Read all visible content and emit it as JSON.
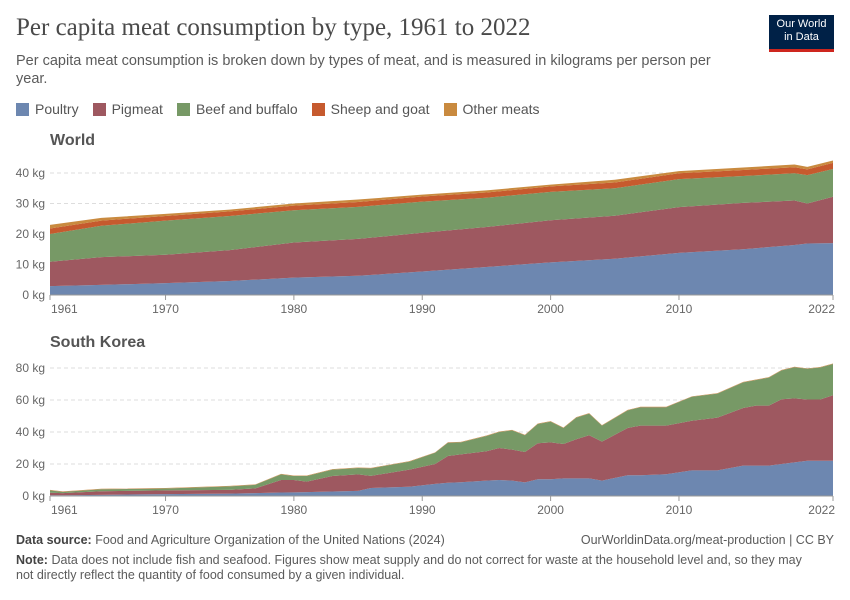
{
  "title": "Per capita meat consumption by type, 1961 to 2022",
  "subtitle": "Per capita meat consumption is broken down by types of meat, and is measured in kilograms per person per year.",
  "logo": "Our World in Data",
  "colors": {
    "Poultry": "#6d87b0",
    "Pigmeat": "#9e5860",
    "Beef and buffalo": "#779966",
    "Sheep and goat": "#c65a2e",
    "Other meats": "#c98a3f"
  },
  "legend": [
    "Poultry",
    "Pigmeat",
    "Beef and buffalo",
    "Sheep and goat",
    "Other meats"
  ],
  "footer": {
    "source_label": "Data source:",
    "source": "Food and Agriculture Organization of the United Nations (2024)",
    "url": "OurWorldinData.org/meat-production | CC BY",
    "note_label": "Note:",
    "note": "Data does not include fish and seafood. Figures show meat supply and do not correct for waste at the household level and, so they may not directly reflect the quantity of food consumed by a given individual."
  },
  "chart_data": [
    {
      "type": "area",
      "stacked": true,
      "title": "World",
      "xlim": [
        1961,
        2022
      ],
      "ylim": [
        0,
        40
      ],
      "yticks": [
        0,
        10,
        20,
        30,
        40
      ],
      "ytick_labels": [
        "0 kg",
        "10 kg",
        "20 kg",
        "30 kg",
        "40 kg"
      ],
      "xticks": [
        1961,
        1970,
        1980,
        1990,
        2000,
        2010,
        2022
      ],
      "grid": true,
      "x": [
        1961,
        1965,
        1970,
        1975,
        1980,
        1985,
        1990,
        1995,
        2000,
        2005,
        2010,
        2015,
        2019,
        2020,
        2022
      ],
      "series": [
        {
          "name": "Poultry",
          "values": [
            2.9,
            3.3,
            3.9,
            4.6,
            5.7,
            6.3,
            7.7,
            9.2,
            10.7,
            11.9,
            13.8,
            15.0,
            16.4,
            16.9,
            17.0
          ]
        },
        {
          "name": "Pigmeat",
          "values": [
            8.0,
            9.1,
            9.3,
            10.1,
            11.5,
            12.1,
            12.7,
            13.1,
            13.8,
            14.1,
            15.0,
            15.2,
            14.6,
            13.1,
            15.2
          ]
        },
        {
          "name": "Beef and buffalo",
          "values": [
            9.1,
            10.3,
            11.2,
            11.2,
            10.6,
            10.5,
            10.2,
            9.6,
            9.3,
            9.0,
            9.2,
            8.8,
            8.9,
            9.3,
            9.1
          ]
        },
        {
          "name": "Sheep and goat",
          "values": [
            1.8,
            1.7,
            1.5,
            1.5,
            1.5,
            1.6,
            1.7,
            1.7,
            1.8,
            1.9,
            1.9,
            2.0,
            2.0,
            1.9,
            2.0
          ]
        },
        {
          "name": "Other meats",
          "values": [
            1.2,
            0.9,
            0.7,
            0.6,
            0.7,
            0.8,
            0.6,
            0.7,
            0.6,
            0.9,
            0.7,
            0.8,
            0.9,
            0.8,
            0.8
          ]
        }
      ]
    },
    {
      "type": "area",
      "stacked": true,
      "title": "South Korea",
      "xlim": [
        1961,
        2022
      ],
      "ylim": [
        0,
        80
      ],
      "yticks": [
        0,
        20,
        40,
        60,
        80
      ],
      "ytick_labels": [
        "0 kg",
        "20 kg",
        "40 kg",
        "60 kg",
        "80 kg"
      ],
      "xticks": [
        1961,
        1970,
        1980,
        1990,
        2000,
        2010,
        2022
      ],
      "grid": true,
      "x": [
        1961,
        1962,
        1965,
        1970,
        1975,
        1977,
        1979,
        1980,
        1981,
        1983,
        1985,
        1986,
        1989,
        1991,
        1992,
        1993,
        1995,
        1996,
        1997,
        1998,
        1999,
        2000,
        2001,
        2002,
        2003,
        2004,
        2006,
        2007,
        2009,
        2011,
        2013,
        2015,
        2016,
        2017,
        2018,
        2019,
        2020,
        2021,
        2022
      ],
      "series": [
        {
          "name": "Poultry",
          "values": [
            0.5,
            0.5,
            0.7,
            1.2,
            1.5,
            1.8,
            2.2,
            2.3,
            2.4,
            2.8,
            3.2,
            5,
            5.8,
            7.6,
            8.3,
            8.6,
            9.6,
            10,
            9.6,
            8.5,
            10.5,
            10.5,
            11,
            11,
            11,
            9.6,
            13,
            13,
            13.6,
            16,
            16,
            19,
            19,
            19,
            20,
            21,
            22,
            22,
            22
          ]
        },
        {
          "name": "Pigmeat",
          "values": [
            1.5,
            1.3,
            2.3,
            2.3,
            2.3,
            3,
            7.8,
            7.7,
            6.6,
            9.7,
            10.3,
            7.6,
            10.7,
            12.4,
            16.7,
            17.4,
            18.4,
            20,
            19.4,
            19,
            22.5,
            23,
            21.5,
            24.5,
            27,
            24.4,
            29.5,
            31,
            30.4,
            31,
            33,
            36,
            37.5,
            37.5,
            40.5,
            40,
            38.3,
            38.3,
            41
          ]
        },
        {
          "name": "Beef and buffalo",
          "values": [
            1.5,
            0.8,
            1.2,
            1.2,
            2.2,
            2.2,
            3.5,
            2.5,
            3.5,
            4,
            4,
            4.7,
            5,
            7,
            8.3,
            7.5,
            9.5,
            10,
            12,
            10.5,
            12,
            13,
            10,
            13.5,
            13.5,
            10,
            11,
            11.5,
            11.5,
            15,
            15,
            16,
            16,
            17.5,
            18,
            19.5,
            19.2,
            20,
            19.5
          ]
        },
        {
          "name": "Sheep and goat",
          "values": [
            0.1,
            0.1,
            0.1,
            0.1,
            0.1,
            0.1,
            0.1,
            0.1,
            0.1,
            0.1,
            0.1,
            0.1,
            0.1,
            0.1,
            0.1,
            0.1,
            0.1,
            0.1,
            0.1,
            0.1,
            0.1,
            0.1,
            0.1,
            0.1,
            0.1,
            0.1,
            0.1,
            0.1,
            0.1,
            0.1,
            0.1,
            0.1,
            0.1,
            0.1,
            0.1,
            0.1,
            0.1,
            0.1,
            0.1
          ]
        },
        {
          "name": "Other meats",
          "values": [
            0.2,
            0.2,
            0.2,
            0.2,
            0.2,
            0.2,
            0.2,
            0.2,
            0.2,
            0.2,
            0.2,
            0.2,
            0.2,
            0.2,
            0.2,
            0.2,
            0.2,
            0.2,
            0.2,
            0.2,
            0.2,
            0.2,
            0.2,
            0.2,
            0.2,
            0.2,
            0.2,
            0.2,
            0.2,
            0.2,
            0.2,
            0.2,
            0.2,
            0.2,
            0.2,
            0.2,
            0.2,
            0.2,
            0.2
          ]
        }
      ]
    }
  ]
}
